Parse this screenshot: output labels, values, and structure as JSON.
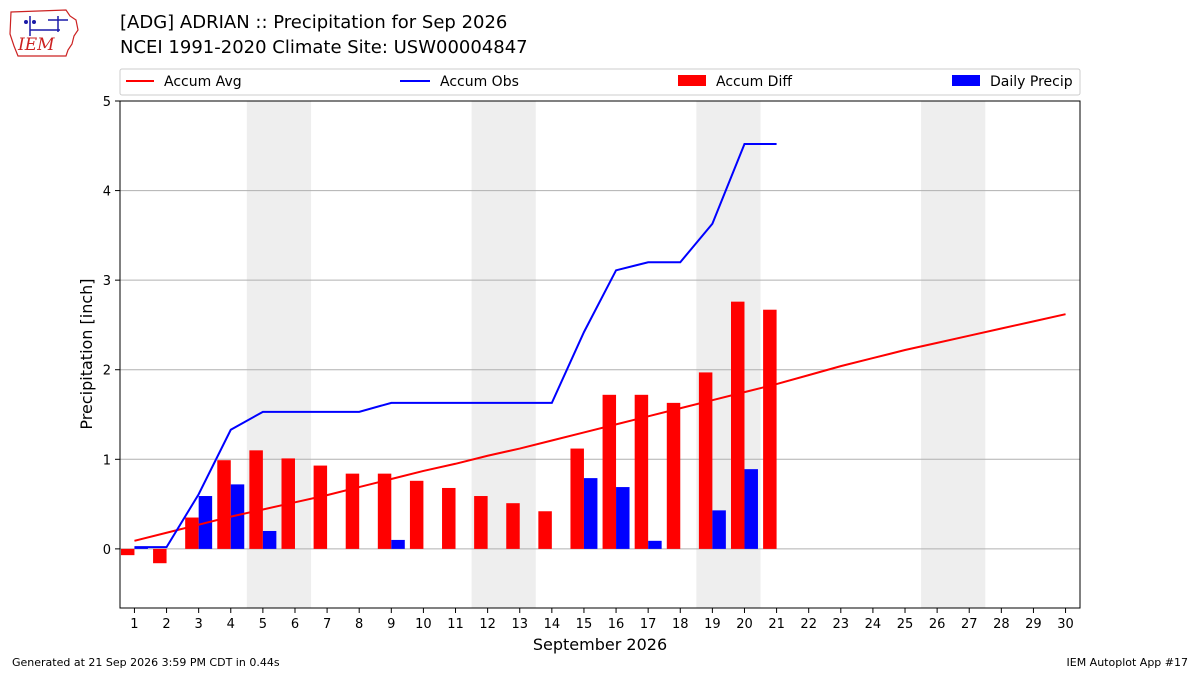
{
  "header": {
    "title_line1": "[ADG] ADRIAN :: Precipitation for Sep 2026",
    "title_line2": "NCEI 1991-2020 Climate Site: USW00004847"
  },
  "logo": {
    "text": "IEM",
    "icon": "iowa-state-map-logo"
  },
  "footer": {
    "left": "Generated at 21 Sep 2026 3:59 PM CDT in 0.44s",
    "right": "IEM Autoplot App #17"
  },
  "colors": {
    "avg": "#ff0000",
    "obs": "#0000ff",
    "diff": "#ff0000",
    "daily": "#0000ff",
    "weekend": "#eeeeee",
    "grid": "#b0b0b0"
  },
  "chart_data": {
    "type": "bar",
    "xlabel": "September 2026",
    "ylabel": "Precipitation [inch]",
    "ylim": [
      -0.66,
      5.0
    ],
    "yticks": [
      0,
      1,
      2,
      3,
      4,
      5
    ],
    "grid": "horizontal",
    "legend_position": "top",
    "days": [
      1,
      2,
      3,
      4,
      5,
      6,
      7,
      8,
      9,
      10,
      11,
      12,
      13,
      14,
      15,
      16,
      17,
      18,
      19,
      20,
      21,
      22,
      23,
      24,
      25,
      26,
      27,
      28,
      29,
      30
    ],
    "weekend_shading": [
      [
        5,
        6
      ],
      [
        12,
        13
      ],
      [
        19,
        20
      ],
      [
        26,
        27
      ]
    ],
    "series": [
      {
        "name": "Accum Avg",
        "kind": "line",
        "values": [
          0.09,
          0.18,
          0.27,
          0.36,
          0.44,
          0.52,
          0.6,
          0.69,
          0.78,
          0.87,
          0.95,
          1.04,
          1.12,
          1.21,
          1.3,
          1.39,
          1.48,
          1.57,
          1.66,
          1.75,
          1.84,
          1.94,
          2.04,
          2.13,
          2.22,
          2.3,
          2.38,
          2.46,
          2.54,
          2.62
        ]
      },
      {
        "name": "Accum Obs",
        "kind": "line",
        "values": [
          0.02,
          0.02,
          0.61,
          1.33,
          1.53,
          1.53,
          1.53,
          1.53,
          1.63,
          1.63,
          1.63,
          1.63,
          1.63,
          1.63,
          2.42,
          3.11,
          3.2,
          3.2,
          3.63,
          4.52,
          4.52
        ]
      },
      {
        "name": "Accum Diff",
        "kind": "bar",
        "values": [
          -0.07,
          -0.16,
          0.35,
          0.99,
          1.1,
          1.01,
          0.93,
          0.84,
          0.84,
          0.76,
          0.68,
          0.59,
          0.51,
          0.42,
          1.12,
          1.72,
          1.72,
          1.63,
          1.97,
          2.76,
          2.67
        ]
      },
      {
        "name": "Daily Precip",
        "kind": "bar",
        "values": [
          0.02,
          0.0,
          0.59,
          0.72,
          0.2,
          0.0,
          0.0,
          0.0,
          0.1,
          0.0,
          0.0,
          0.0,
          0.0,
          0.0,
          0.79,
          0.69,
          0.09,
          0.0,
          0.43,
          0.89,
          0.0
        ]
      }
    ]
  }
}
